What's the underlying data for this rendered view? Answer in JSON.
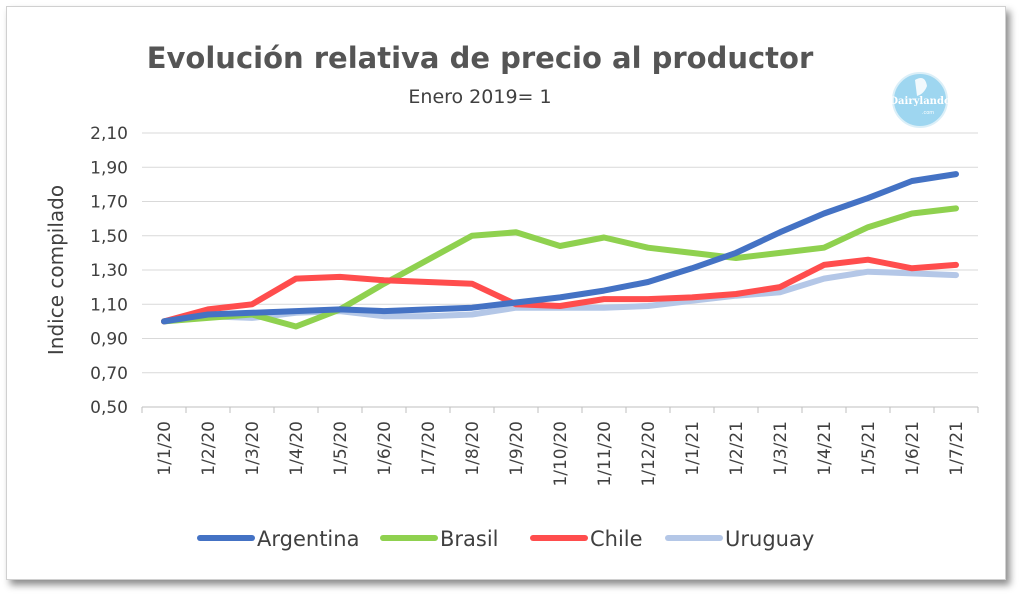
{
  "logo": {
    "text": "Dairylando",
    "sub": ".com"
  },
  "chart_data": {
    "type": "line",
    "title": "Evolución relativa de precio al productor",
    "subtitle": "Enero 2019= 1",
    "xlabel": "",
    "ylabel": "Indice compilado",
    "ylim": [
      0.5,
      2.1
    ],
    "yticks": [
      "2,10",
      "1,90",
      "1,70",
      "1,50",
      "1,30",
      "1,10",
      "0,90",
      "0,70",
      "0,50"
    ],
    "ytick_values": [
      2.1,
      1.9,
      1.7,
      1.5,
      1.3,
      1.1,
      0.9,
      0.7,
      0.5
    ],
    "grid": "horizontal",
    "legend_position": "bottom",
    "categories": [
      "1/1/20",
      "1/2/20",
      "1/3/20",
      "1/4/20",
      "1/5/20",
      "1/6/20",
      "1/7/20",
      "1/8/20",
      "1/9/20",
      "1/10/20",
      "1/11/20",
      "1/12/20",
      "1/1/21",
      "1/2/21",
      "1/3/21",
      "1/4/21",
      "1/5/21",
      "1/6/21",
      "1/7/21"
    ],
    "series": [
      {
        "name": "Argentina",
        "color": "#4472c4",
        "values": [
          1.0,
          1.04,
          1.05,
          1.06,
          1.07,
          1.06,
          1.07,
          1.08,
          1.11,
          1.14,
          1.18,
          1.23,
          1.31,
          1.4,
          1.52,
          1.63,
          1.72,
          1.82,
          1.86
        ]
      },
      {
        "name": "Brasil",
        "color": "#8fd14f",
        "values": [
          1.0,
          1.02,
          1.04,
          0.97,
          1.07,
          1.22,
          1.36,
          1.5,
          1.52,
          1.44,
          1.49,
          1.43,
          1.4,
          1.37,
          1.4,
          1.43,
          1.55,
          1.63,
          1.66
        ]
      },
      {
        "name": "Chile",
        "color": "#ff4d4d",
        "values": [
          1.0,
          1.07,
          1.1,
          1.25,
          1.26,
          1.24,
          1.23,
          1.22,
          1.1,
          1.09,
          1.13,
          1.13,
          1.14,
          1.16,
          1.2,
          1.33,
          1.36,
          1.31,
          1.33
        ]
      },
      {
        "name": "Uruguay",
        "color": "#b4c7e7",
        "values": [
          1.0,
          1.03,
          1.02,
          1.05,
          1.06,
          1.03,
          1.03,
          1.04,
          1.08,
          1.08,
          1.08,
          1.09,
          1.12,
          1.15,
          1.17,
          1.25,
          1.29,
          1.28,
          1.27
        ]
      }
    ]
  }
}
